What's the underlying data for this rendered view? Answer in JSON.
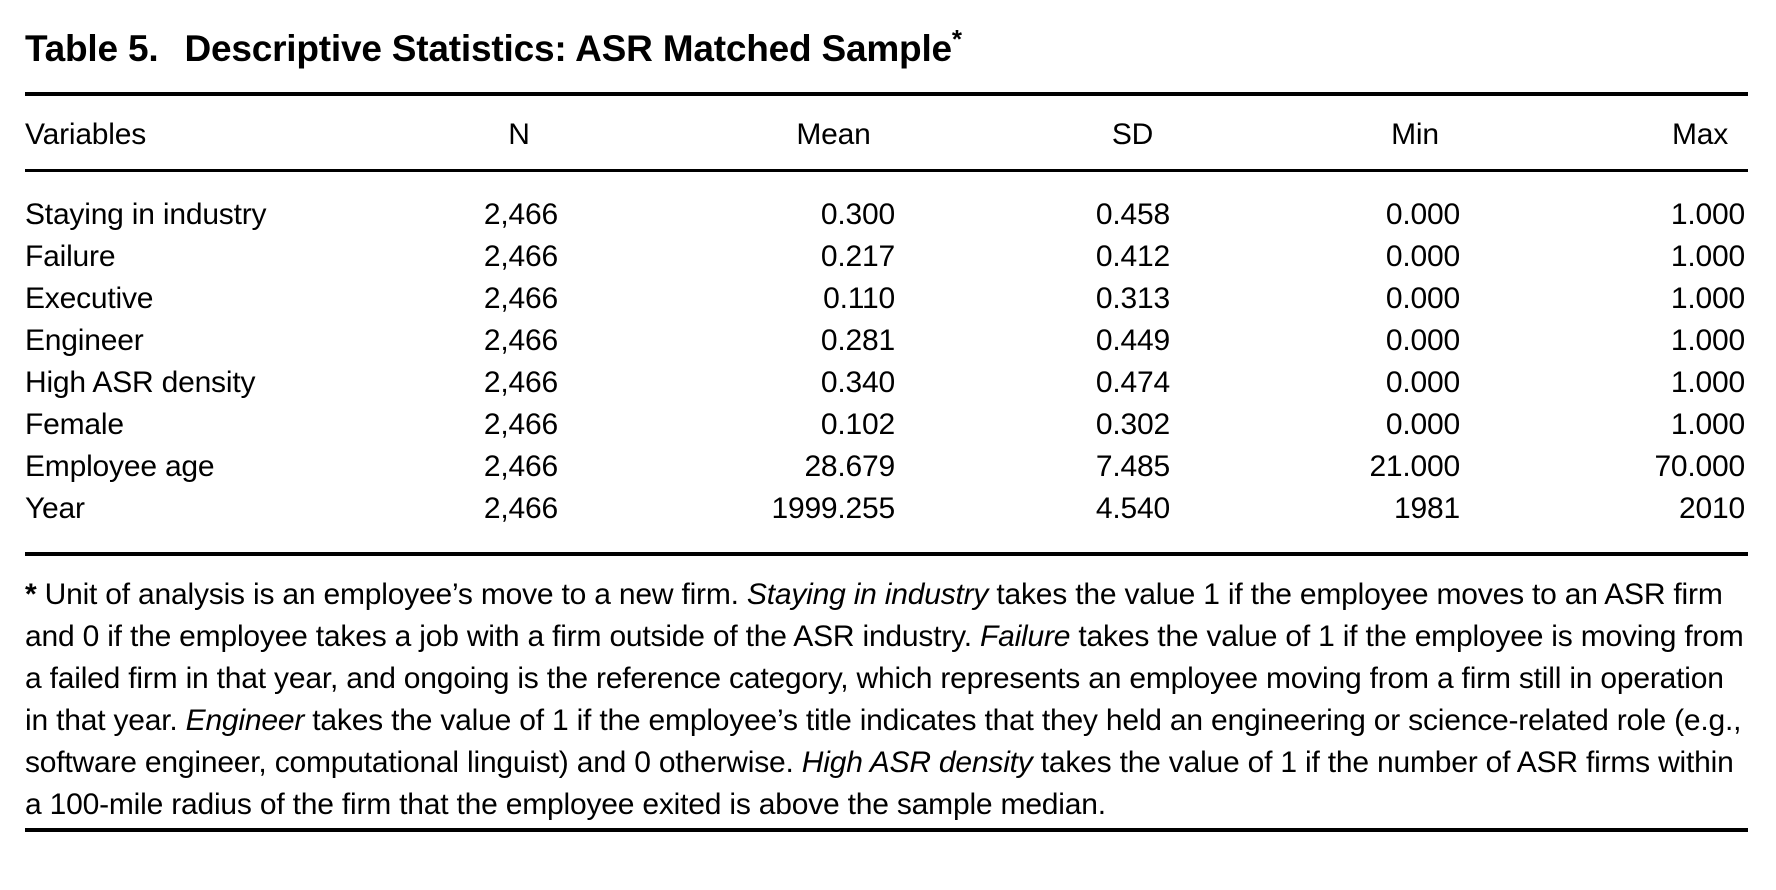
{
  "page": {
    "title_prefix": "Table 5.",
    "title_main": "Descriptive Statistics: ASR Matched Sample",
    "title_asterisk": "*"
  },
  "table": {
    "headers": {
      "variables": "Variables",
      "n": "N",
      "mean": "Mean",
      "sd": "SD",
      "min": "Min",
      "max": "Max"
    },
    "rows": [
      {
        "variable": "Staying in industry",
        "n": "2,466",
        "mean": "0.300",
        "sd": "0.458",
        "min": "0.000",
        "max": "1.000"
      },
      {
        "variable": "Failure",
        "n": "2,466",
        "mean": "0.217",
        "sd": "0.412",
        "min": "0.000",
        "max": "1.000"
      },
      {
        "variable": "Executive",
        "n": "2,466",
        "mean": "0.110",
        "sd": "0.313",
        "min": "0.000",
        "max": "1.000"
      },
      {
        "variable": "Engineer",
        "n": "2,466",
        "mean": "0.281",
        "sd": "0.449",
        "min": "0.000",
        "max": "1.000"
      },
      {
        "variable": "High ASR density",
        "n": "2,466",
        "mean": "0.340",
        "sd": "0.474",
        "min": "0.000",
        "max": "1.000"
      },
      {
        "variable": "Female",
        "n": "2,466",
        "mean": "0.102",
        "sd": "0.302",
        "min": "0.000",
        "max": "1.000"
      },
      {
        "variable": "Employee age",
        "n": "2,466",
        "mean": "28.679",
        "sd": "7.485",
        "min": "21.000",
        "max": "70.000"
      },
      {
        "variable": "Year",
        "n": "2,466",
        "mean": "1999.255",
        "sd": "4.540",
        "min": "1981",
        "max": "2010"
      }
    ]
  },
  "footnote": {
    "marker": "*",
    "segments": {
      "s1": " Unit of analysis is an employee’s move to a new firm. ",
      "s2": "Staying in industry",
      "s3": " takes the value 1 if the employee moves to an ASR firm and 0 if the employee takes a job with a firm outside of the ASR industry. ",
      "s4": "Failure",
      "s5": " takes the value of 1 if the employee is moving from a failed firm in that year, and ongoing is the reference category, which represents an employee moving from a firm still in operation in that year. ",
      "s6": "Engineer",
      "s7": " takes the value of 1 if the employee’s title indicates that they held an engineering or science-related role (e.g., software engineer, computational linguist) and 0 otherwise. ",
      "s8": "High ASR density",
      "s9": " takes the value of 1 if the number of ASR firms within a 100-mile radius of the firm that the employee exited is above the sample median."
    }
  }
}
